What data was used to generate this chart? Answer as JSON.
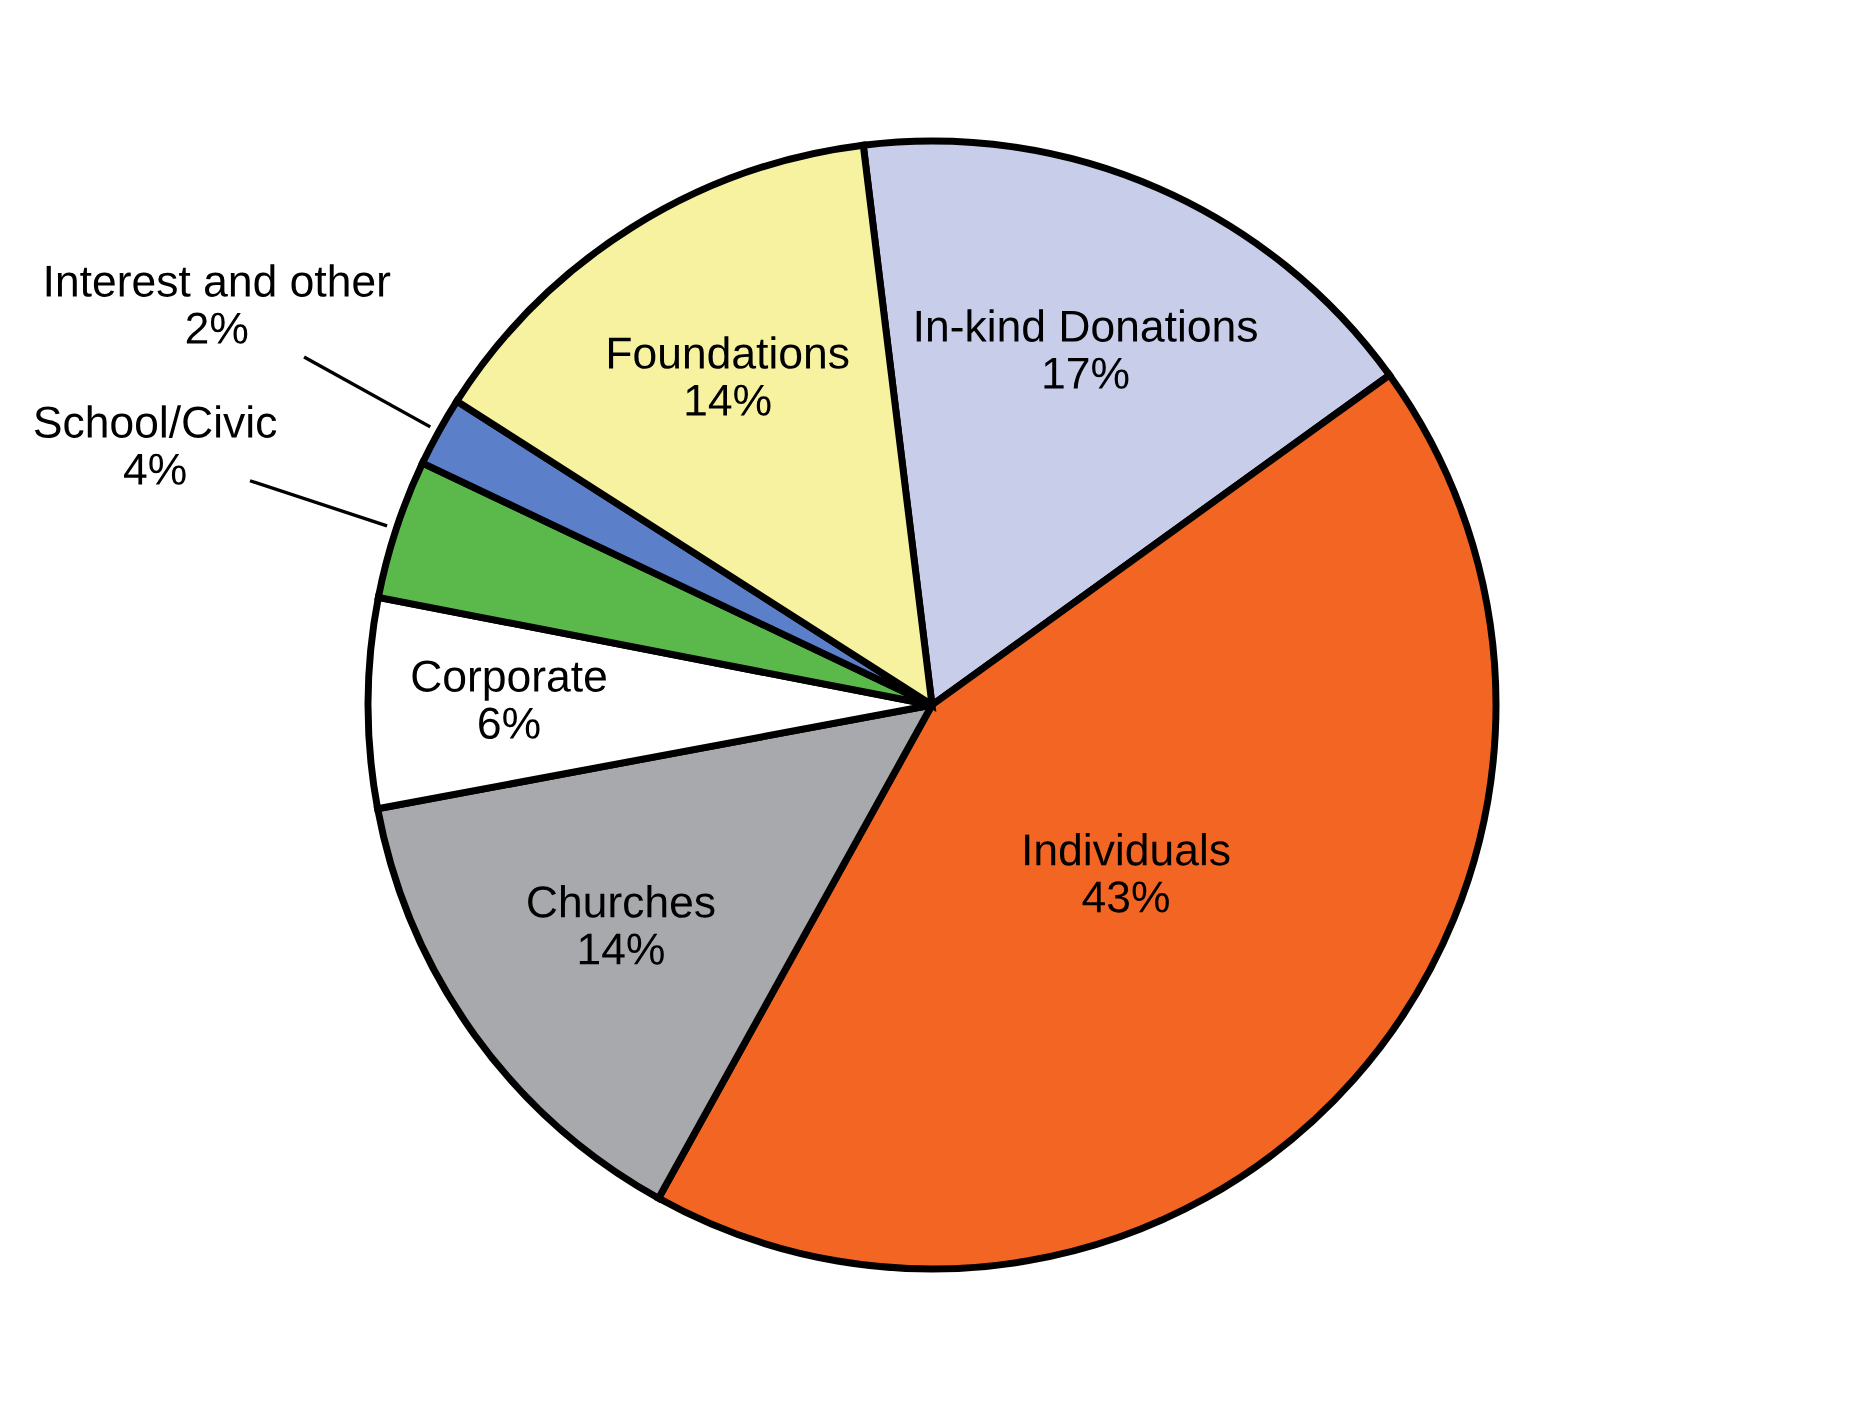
{
  "chart_data": {
    "type": "pie",
    "categories": [
      "In-kind Donations",
      "Individuals",
      "Churches",
      "Corporate",
      "School/Civic",
      "Interest and other",
      "Foundations"
    ],
    "values": [
      17,
      43,
      14,
      6,
      4,
      2,
      14
    ],
    "value_labels": [
      "17%",
      "43%",
      "14%",
      "6%",
      "4%",
      "2%",
      "14%"
    ],
    "colors": [
      "#c8cdea",
      "#f26522",
      "#a8a9ad",
      "#ffffff",
      "#5ab94a",
      "#5b7fc9",
      "#f7f2a0"
    ]
  }
}
